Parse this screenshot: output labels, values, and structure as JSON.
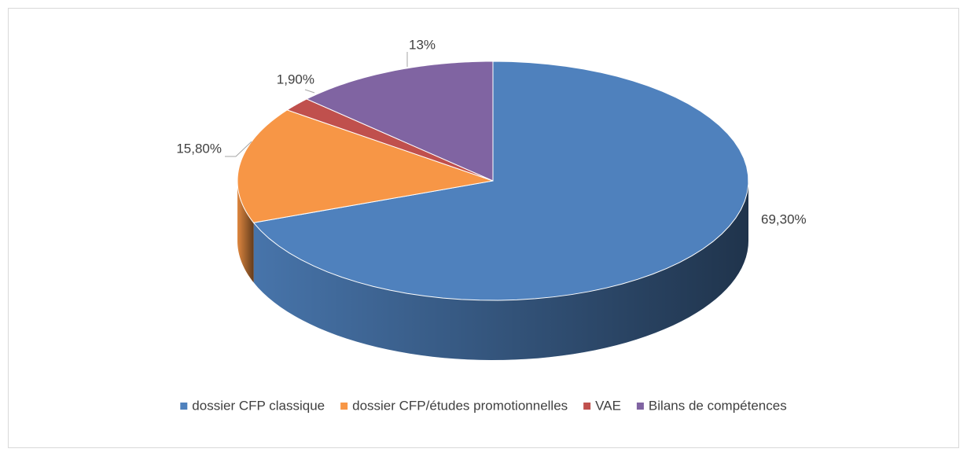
{
  "chart_data": {
    "type": "pie3d",
    "categories": [
      "dossier CFP classique",
      "dossier CFP/études promotionnelles",
      "VAE",
      "Bilans de compétences"
    ],
    "values": [
      69.3,
      15.8,
      1.9,
      13
    ],
    "value_labels": [
      "69,30%",
      "15,80%",
      "1,90%",
      "13%"
    ],
    "colors": [
      "#4f81bd",
      "#f79646",
      "#c0504d",
      "#8064a2"
    ],
    "legend": "bottom"
  }
}
